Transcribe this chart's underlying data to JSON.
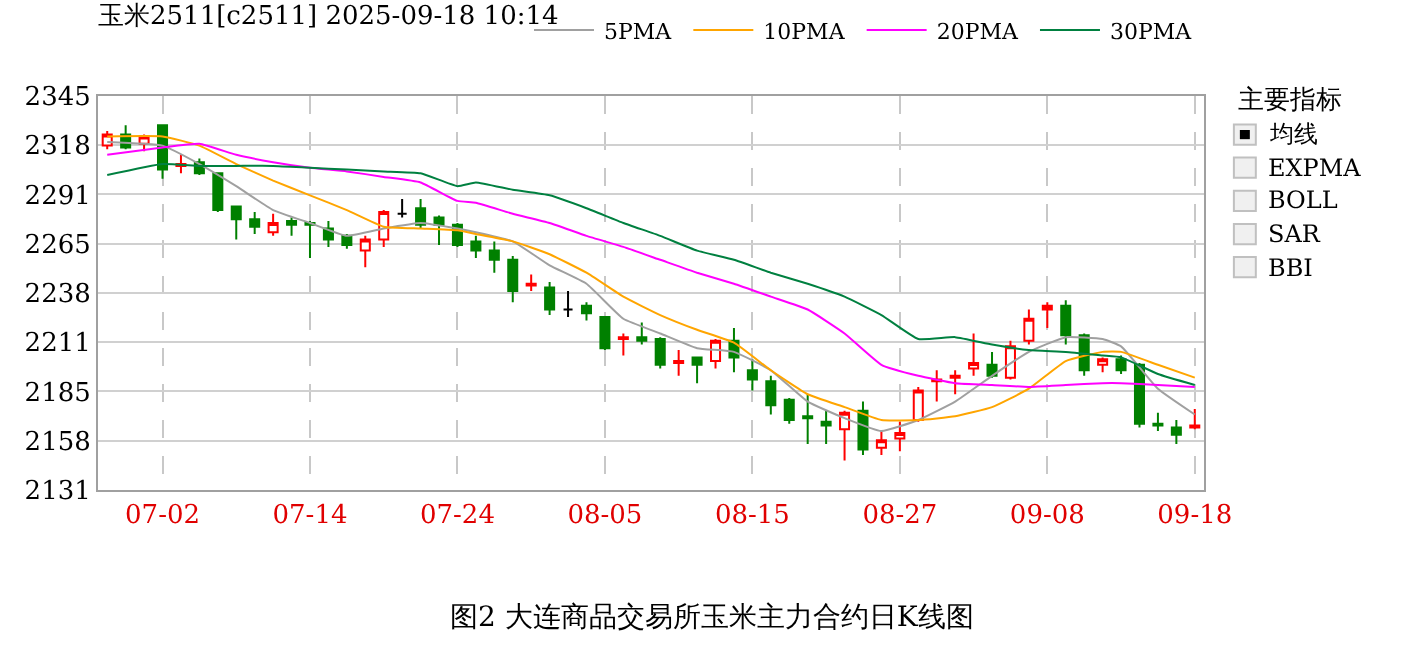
{
  "chart_data": {
    "type": "candlestick",
    "title": "玉米2511[c2511] 2025-09-18 10:14",
    "categories": [
      null,
      null,
      null,
      "07-02",
      null,
      null,
      null,
      null,
      null,
      null,
      null,
      "07-14",
      null,
      null,
      null,
      null,
      null,
      null,
      null,
      "07-24",
      null,
      null,
      null,
      null,
      null,
      null,
      null,
      "08-05",
      null,
      null,
      null,
      null,
      null,
      null,
      null,
      "08-15",
      null,
      null,
      null,
      null,
      null,
      null,
      null,
      "08-27",
      null,
      null,
      null,
      null,
      null,
      null,
      null,
      "09-08",
      null,
      null,
      null,
      null,
      null,
      null,
      null,
      "09-18"
    ],
    "ohlc": [
      [
        2318,
        2326,
        2316,
        2324
      ],
      [
        2324,
        2329,
        2316,
        2317
      ],
      [
        2319,
        2324,
        2315,
        2323
      ],
      [
        2329,
        2329,
        2300,
        2305
      ],
      [
        2307,
        2313,
        2303,
        2308
      ],
      [
        2309,
        2311,
        2302,
        2303
      ],
      [
        2303,
        2303,
        2282,
        2283
      ],
      [
        2285,
        2285,
        2267,
        2278
      ],
      [
        2278,
        2282,
        2270,
        2274
      ],
      [
        2271,
        2281,
        2269,
        2276
      ],
      [
        2277,
        2279,
        2269,
        2275
      ],
      [
        2276,
        2277,
        2257,
        2275
      ],
      [
        2273,
        2277,
        2263,
        2267
      ],
      [
        2269,
        2270,
        2262,
        2264
      ],
      [
        2261,
        2269,
        2252,
        2267
      ],
      [
        2267,
        2283,
        2263,
        2282
      ],
      [
        2281,
        2289,
        2279,
        2281
      ],
      [
        2284,
        2289,
        2273,
        2275
      ],
      [
        2279,
        2280,
        2264,
        2275
      ],
      [
        2275,
        2276,
        2263,
        2264
      ],
      [
        2266,
        2269,
        2257,
        2261
      ],
      [
        2261,
        2266,
        2249,
        2256
      ],
      [
        2256,
        2258,
        2233,
        2239
      ],
      [
        2242,
        2248,
        2239,
        2243
      ],
      [
        2241,
        2244,
        2226,
        2229
      ],
      [
        2229,
        2239,
        2225,
        2229
      ],
      [
        2231,
        2233,
        2223,
        2227
      ],
      [
        2225,
        2225,
        2207,
        2208
      ],
      [
        2213,
        2216,
        2204,
        2214
      ],
      [
        2214,
        2222,
        2210,
        2212
      ],
      [
        2213,
        2214,
        2197,
        2199
      ],
      [
        2200,
        2207,
        2193,
        2201
      ],
      [
        2203,
        2203,
        2189,
        2199
      ],
      [
        2201,
        2213,
        2197,
        2212
      ],
      [
        2212,
        2219,
        2195,
        2203
      ],
      [
        2196,
        2202,
        2185,
        2191
      ],
      [
        2190,
        2193,
        2172,
        2177
      ],
      [
        2180,
        2181,
        2167,
        2169
      ],
      [
        2171,
        2183,
        2156,
        2170
      ],
      [
        2168,
        2174,
        2156,
        2166
      ],
      [
        2164,
        2174,
        2147,
        2173
      ],
      [
        2174,
        2179,
        2150,
        2153
      ],
      [
        2154,
        2163,
        2150,
        2158
      ],
      [
        2159,
        2168,
        2152,
        2162
      ],
      [
        2169,
        2187,
        2168,
        2185
      ],
      [
        2190,
        2196,
        2179,
        2191
      ],
      [
        2192,
        2196,
        2183,
        2193
      ],
      [
        2197,
        2216,
        2193,
        2200
      ],
      [
        2199,
        2206,
        2192,
        2193
      ],
      [
        2192,
        2212,
        2191,
        2209
      ],
      [
        2212,
        2229,
        2210,
        2224
      ],
      [
        2229,
        2233,
        2219,
        2231
      ],
      [
        2231,
        2234,
        2210,
        2215
      ],
      [
        2215,
        2216,
        2193,
        2196
      ],
      [
        2199,
        2203,
        2195,
        2202
      ],
      [
        2202,
        2204,
        2194,
        2196
      ],
      [
        2199,
        2200,
        2165,
        2167
      ],
      [
        2167,
        2173,
        2163,
        2166
      ],
      [
        2165,
        2169,
        2156,
        2161
      ],
      [
        2165,
        2175,
        2164,
        2166
      ]
    ],
    "colors": [
      "#ff0000",
      "#008000",
      "#ff0000",
      "#008000",
      "#ff0000",
      "#008000",
      "#008000",
      "#008000",
      "#008000",
      "#ff0000",
      "#008000",
      "#008000",
      "#008000",
      "#008000",
      "#ff0000",
      "#ff0000",
      "#000000",
      "#008000",
      "#008000",
      "#008000",
      "#008000",
      "#008000",
      "#008000",
      "#ff0000",
      "#008000",
      "#000000",
      "#008000",
      "#008000",
      "#ff0000",
      "#008000",
      "#008000",
      "#ff0000",
      "#008000",
      "#ff0000",
      "#008000",
      "#008000",
      "#008000",
      "#008000",
      "#008000",
      "#008000",
      "#ff0000",
      "#008000",
      "#ff0000",
      "#ff0000",
      "#ff0000",
      "#ff0000",
      "#ff0000",
      "#ff0000",
      "#008000",
      "#ff0000",
      "#ff0000",
      "#ff0000",
      "#008000",
      "#008000",
      "#ff0000",
      "#008000",
      "#008000",
      "#008000",
      "#008000",
      "#ff0000"
    ],
    "series": [
      {
        "type": "line",
        "name": "5PMA",
        "color": "#a0a0a0",
        "values": [
          2320,
          null,
          null,
          2318,
          null,
          2308,
          null,
          2296,
          null,
          2283,
          null,
          2276,
          null,
          2269,
          null,
          2273,
          null,
          2276,
          null,
          2273,
          2271,
          null,
          2266,
          null,
          2253,
          null,
          2243,
          null,
          2224,
          null,
          2216,
          null,
          2208,
          null,
          2206,
          null,
          2196,
          null,
          2179,
          null,
          2170,
          null,
          2163,
          null,
          2169,
          null,
          2179,
          null,
          2193,
          null,
          2206,
          null,
          2214,
          null,
          2213,
          2209,
          null,
          2186,
          null,
          2172
        ]
      },
      {
        "type": "line",
        "name": "10PMA",
        "color": "#ffa500",
        "values": [
          2323,
          null,
          null,
          2323,
          null,
          2318,
          null,
          2308,
          null,
          2299,
          null,
          2291,
          null,
          2283,
          null,
          2274,
          null,
          2273,
          null,
          2272,
          2270,
          null,
          2266,
          null,
          2259,
          null,
          2249,
          null,
          2236,
          null,
          2226,
          null,
          2218,
          null,
          2211,
          null,
          2196,
          null,
          2183,
          null,
          2176,
          null,
          2169,
          null,
          2169,
          null,
          2171,
          null,
          2176,
          null,
          2186,
          null,
          2201,
          null,
          2206,
          2206,
          null,
          2199,
          null,
          2192
        ]
      },
      {
        "type": "line",
        "name": "20PMA",
        "color": "#ff00ff",
        "values": [
          2313,
          null,
          null,
          2317,
          null,
          2319,
          null,
          2313,
          null,
          2309,
          null,
          2306,
          null,
          2304,
          null,
          2301,
          null,
          2298,
          null,
          2288,
          2287,
          null,
          2281,
          null,
          2276,
          null,
          2269,
          null,
          2263,
          null,
          2256,
          null,
          2249,
          null,
          2243,
          null,
          2236,
          null,
          2229,
          null,
          2216,
          null,
          2199,
          null,
          2193,
          null,
          2189,
          null,
          2188,
          null,
          2187,
          null,
          2188,
          null,
          2189,
          2189,
          null,
          2188,
          null,
          2187
        ]
      },
      {
        "type": "line",
        "name": "30PMA",
        "color": "#008040",
        "values": [
          2302,
          null,
          null,
          2308,
          null,
          2307,
          null,
          2307,
          null,
          2307,
          null,
          2306,
          null,
          2305,
          null,
          2304,
          null,
          2303,
          null,
          2296,
          2298,
          null,
          2294,
          null,
          2291,
          null,
          2284,
          null,
          2276,
          null,
          2269,
          null,
          2261,
          null,
          2256,
          null,
          2249,
          null,
          2243,
          null,
          2236,
          null,
          2226,
          null,
          2213,
          null,
          2214,
          null,
          2210,
          null,
          2207,
          null,
          2206,
          null,
          2204,
          2203,
          null,
          2194,
          null,
          2188
        ]
      }
    ],
    "ylim": [
      2131,
      2345
    ],
    "yticks": [
      2131,
      {
        "value": 2157.75,
        "label": "2158"
      },
      {
        "value": 2184.5,
        "label": "2185"
      },
      {
        "value": 2211.25,
        "label": "2211"
      },
      2238,
      {
        "value": 2264.75,
        "label": "2265"
      },
      {
        "value": 2291.5,
        "label": "2291"
      },
      {
        "value": 2318.25,
        "label": "2318"
      },
      2345
    ],
    "grid": true,
    "legend": "top right",
    "annotations": [
      "主要指标",
      "均线",
      "EXPMA",
      "BOLL",
      "SAR",
      "BBI",
      "图2 大连商品交易所玉米主力合约日K线图"
    ]
  }
}
